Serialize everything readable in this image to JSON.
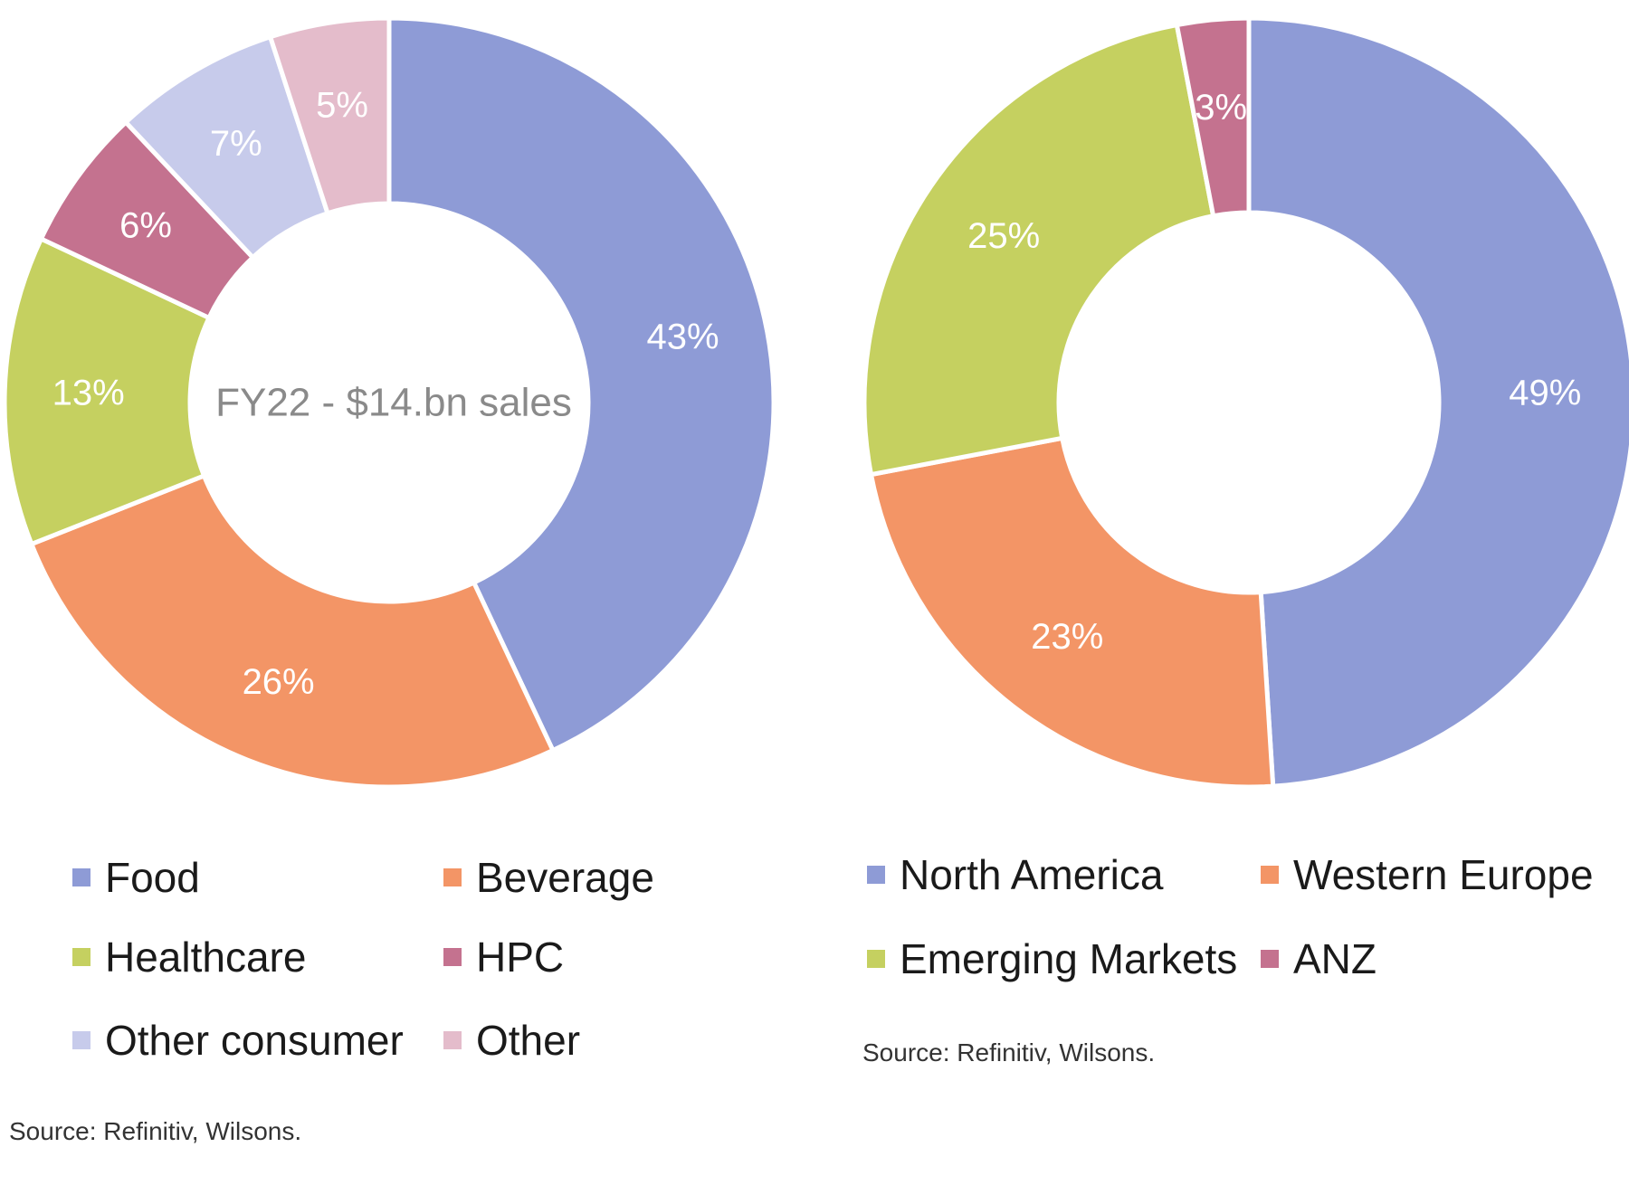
{
  "chart_data": [
    {
      "type": "pie",
      "variant": "donut",
      "center_text": "FY22 - $14.bn sales",
      "categories": [
        "Food",
        "Beverage",
        "Healthcare",
        "HPC",
        "Other consumer",
        "Other"
      ],
      "values": [
        43,
        26,
        13,
        6,
        7,
        5
      ],
      "labels": [
        "43%",
        "26%",
        "13%",
        "6%",
        "7%",
        "5%"
      ],
      "colors": [
        "#8e9bd6",
        "#f39566",
        "#c5d060",
        "#c4728f",
        "#c7cbeb",
        "#e4bccb"
      ],
      "legend_position": "bottom",
      "source": "Source: Refinitiv, Wilsons."
    },
    {
      "type": "pie",
      "variant": "donut",
      "center_text": "",
      "categories": [
        "North America",
        "Western Europe",
        "Emerging Markets",
        "ANZ"
      ],
      "values": [
        49,
        23,
        25,
        3
      ],
      "labels": [
        "49%",
        "23%",
        "25%",
        "3%"
      ],
      "colors": [
        "#8e9bd6",
        "#f39566",
        "#c5d060",
        "#c4728f"
      ],
      "legend_position": "bottom",
      "source": "Source: Refinitiv, Wilsons."
    }
  ]
}
